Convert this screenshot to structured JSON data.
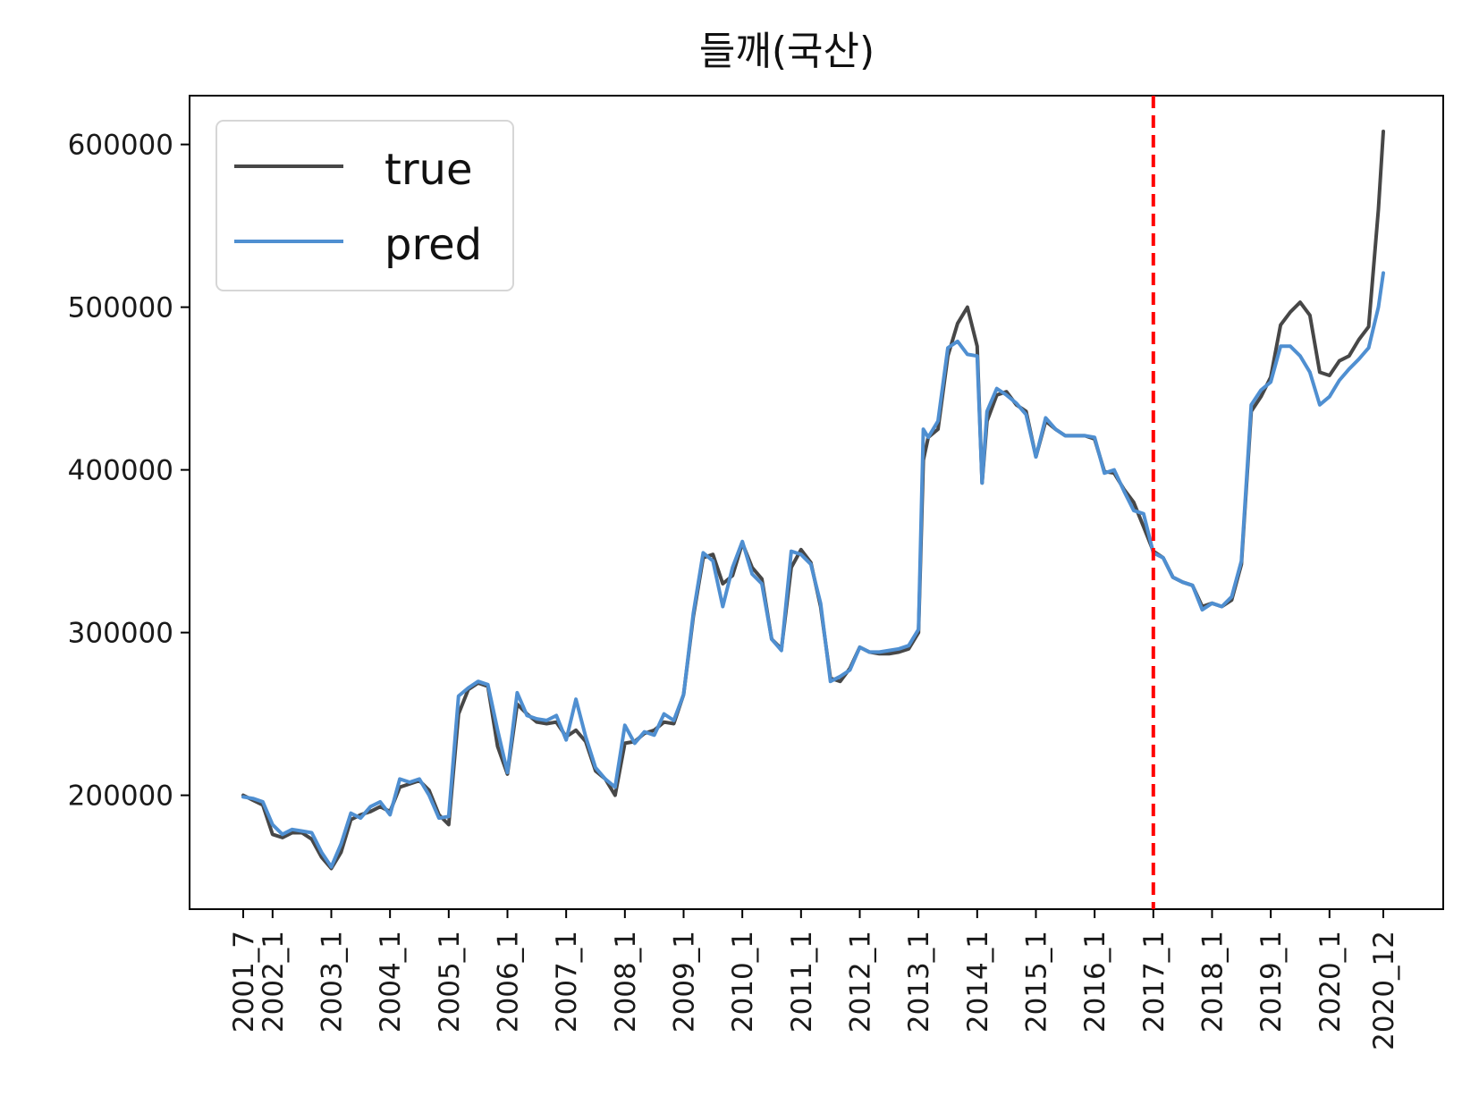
{
  "chart_data": {
    "type": "line",
    "title": "들깨(국산)",
    "xlabel": "",
    "ylabel": "",
    "x_ticks": [
      "2001_7",
      "2002_1",
      "2003_1",
      "2004_1",
      "2005_1",
      "2006_1",
      "2007_1",
      "2008_1",
      "2009_1",
      "2010_1",
      "2011_1",
      "2012_1",
      "2013_1",
      "2014_1",
      "2015_1",
      "2016_1",
      "2017_1",
      "2018_1",
      "2019_1",
      "2020_1",
      "2020_12"
    ],
    "y_ticks": [
      200000,
      300000,
      400000,
      500000,
      600000
    ],
    "ylim": [
      130000,
      630000
    ],
    "grid": false,
    "legend": {
      "position": "upper-left",
      "entries": [
        "true",
        "pred"
      ]
    },
    "split_marker": {
      "x": "2017_1",
      "color": "#ff0000",
      "style": "dashed"
    },
    "colors": {
      "true": "#474747",
      "pred": "#4f8fd1",
      "split": "#ff0000"
    },
    "series": [
      {
        "name": "true",
        "points": [
          [
            "2001_7",
            200000
          ],
          [
            "2001_9",
            197000
          ],
          [
            "2001_11",
            194000
          ],
          [
            "2002_1",
            176000
          ],
          [
            "2002_3",
            174000
          ],
          [
            "2002_5",
            177000
          ],
          [
            "2002_7",
            177000
          ],
          [
            "2002_9",
            173000
          ],
          [
            "2002_11",
            162000
          ],
          [
            "2003_1",
            155000
          ],
          [
            "2003_3",
            165000
          ],
          [
            "2003_5",
            185000
          ],
          [
            "2003_7",
            188000
          ],
          [
            "2003_9",
            190000
          ],
          [
            "2003_11",
            193000
          ],
          [
            "2004_1",
            190000
          ],
          [
            "2004_3",
            205000
          ],
          [
            "2004_5",
            207000
          ],
          [
            "2004_7",
            209000
          ],
          [
            "2004_9",
            203000
          ],
          [
            "2004_11",
            188000
          ],
          [
            "2005_1",
            182000
          ],
          [
            "2005_3",
            250000
          ],
          [
            "2005_5",
            265000
          ],
          [
            "2005_7",
            269000
          ],
          [
            "2005_9",
            267000
          ],
          [
            "2005_11",
            230000
          ],
          [
            "2006_1",
            213000
          ],
          [
            "2006_3",
            256000
          ],
          [
            "2006_5",
            250000
          ],
          [
            "2006_7",
            245000
          ],
          [
            "2006_9",
            244000
          ],
          [
            "2006_11",
            245000
          ],
          [
            "2007_1",
            236000
          ],
          [
            "2007_3",
            240000
          ],
          [
            "2007_5",
            233000
          ],
          [
            "2007_7",
            215000
          ],
          [
            "2007_9",
            210000
          ],
          [
            "2007_11",
            200000
          ],
          [
            "2008_1",
            232000
          ],
          [
            "2008_3",
            233000
          ],
          [
            "2008_5",
            238000
          ],
          [
            "2008_7",
            240000
          ],
          [
            "2008_9",
            245000
          ],
          [
            "2008_11",
            244000
          ],
          [
            "2009_1",
            262000
          ],
          [
            "2009_3",
            310000
          ],
          [
            "2009_5",
            346000
          ],
          [
            "2009_7",
            348000
          ],
          [
            "2009_9",
            330000
          ],
          [
            "2009_11",
            335000
          ],
          [
            "2010_1",
            355000
          ],
          [
            "2010_3",
            340000
          ],
          [
            "2010_5",
            333000
          ],
          [
            "2010_7",
            296000
          ],
          [
            "2010_9",
            290000
          ],
          [
            "2010_11",
            340000
          ],
          [
            "2011_1",
            351000
          ],
          [
            "2011_3",
            343000
          ],
          [
            "2011_5",
            316000
          ],
          [
            "2011_7",
            272000
          ],
          [
            "2011_9",
            270000
          ],
          [
            "2011_11",
            278000
          ],
          [
            "2012_1",
            291000
          ],
          [
            "2012_3",
            288000
          ],
          [
            "2012_5",
            287000
          ],
          [
            "2012_7",
            287000
          ],
          [
            "2012_9",
            288000
          ],
          [
            "2012_11",
            290000
          ],
          [
            "2013_1",
            300000
          ],
          [
            "2013_2",
            406000
          ],
          [
            "2013_3",
            420000
          ],
          [
            "2013_5",
            425000
          ],
          [
            "2013_7",
            470000
          ],
          [
            "2013_9",
            490000
          ],
          [
            "2013_11",
            500000
          ],
          [
            "2014_1",
            476000
          ],
          [
            "2014_2",
            392000
          ],
          [
            "2014_3",
            430000
          ],
          [
            "2014_5",
            446000
          ],
          [
            "2014_7",
            448000
          ],
          [
            "2014_9",
            440000
          ],
          [
            "2014_11",
            436000
          ],
          [
            "2015_1",
            408000
          ],
          [
            "2015_3",
            430000
          ],
          [
            "2015_5",
            425000
          ],
          [
            "2015_7",
            421000
          ],
          [
            "2015_9",
            421000
          ],
          [
            "2015_11",
            421000
          ],
          [
            "2016_1",
            419000
          ],
          [
            "2016_3",
            399000
          ],
          [
            "2016_5",
            398000
          ],
          [
            "2016_7",
            388000
          ],
          [
            "2016_9",
            380000
          ],
          [
            "2016_11",
            365000
          ],
          [
            "2017_1",
            350000
          ],
          [
            "2017_3",
            346000
          ],
          [
            "2017_5",
            334000
          ],
          [
            "2017_7",
            331000
          ],
          [
            "2017_9",
            329000
          ],
          [
            "2017_11",
            316000
          ],
          [
            "2018_1",
            318000
          ],
          [
            "2018_3",
            316000
          ],
          [
            "2018_5",
            320000
          ],
          [
            "2018_7",
            342000
          ],
          [
            "2018_9",
            436000
          ],
          [
            "2018_11",
            445000
          ],
          [
            "2019_1",
            457000
          ],
          [
            "2019_3",
            489000
          ],
          [
            "2019_5",
            497000
          ],
          [
            "2019_7",
            503000
          ],
          [
            "2019_9",
            495000
          ],
          [
            "2019_11",
            460000
          ],
          [
            "2020_1",
            458000
          ],
          [
            "2020_3",
            467000
          ],
          [
            "2020_5",
            470000
          ],
          [
            "2020_7",
            480000
          ],
          [
            "2020_9",
            488000
          ],
          [
            "2020_11",
            560000
          ],
          [
            "2020_12",
            608000
          ]
        ]
      },
      {
        "name": "pred",
        "points": [
          [
            "2001_7",
            199000
          ],
          [
            "2001_9",
            198000
          ],
          [
            "2001_11",
            196000
          ],
          [
            "2002_1",
            182000
          ],
          [
            "2002_3",
            176000
          ],
          [
            "2002_5",
            179000
          ],
          [
            "2002_7",
            178000
          ],
          [
            "2002_9",
            177000
          ],
          [
            "2002_11",
            165000
          ],
          [
            "2003_1",
            156000
          ],
          [
            "2003_3",
            170000
          ],
          [
            "2003_5",
            189000
          ],
          [
            "2003_7",
            186000
          ],
          [
            "2003_9",
            193000
          ],
          [
            "2003_11",
            196000
          ],
          [
            "2004_1",
            188000
          ],
          [
            "2004_3",
            210000
          ],
          [
            "2004_5",
            208000
          ],
          [
            "2004_7",
            210000
          ],
          [
            "2004_9",
            200000
          ],
          [
            "2004_11",
            186000
          ],
          [
            "2005_1",
            187000
          ],
          [
            "2005_3",
            261000
          ],
          [
            "2005_5",
            266000
          ],
          [
            "2005_7",
            270000
          ],
          [
            "2005_9",
            268000
          ],
          [
            "2005_11",
            240000
          ],
          [
            "2006_1",
            214000
          ],
          [
            "2006_3",
            263000
          ],
          [
            "2006_5",
            249000
          ],
          [
            "2006_7",
            247000
          ],
          [
            "2006_9",
            246000
          ],
          [
            "2006_11",
            249000
          ],
          [
            "2007_1",
            234000
          ],
          [
            "2007_3",
            259000
          ],
          [
            "2007_5",
            236000
          ],
          [
            "2007_7",
            217000
          ],
          [
            "2007_9",
            210000
          ],
          [
            "2007_11",
            205000
          ],
          [
            "2008_1",
            243000
          ],
          [
            "2008_3",
            232000
          ],
          [
            "2008_5",
            239000
          ],
          [
            "2008_7",
            237000
          ],
          [
            "2008_9",
            250000
          ],
          [
            "2008_11",
            246000
          ],
          [
            "2009_1",
            262000
          ],
          [
            "2009_3",
            312000
          ],
          [
            "2009_5",
            349000
          ],
          [
            "2009_7",
            344000
          ],
          [
            "2009_9",
            316000
          ],
          [
            "2009_11",
            340000
          ],
          [
            "2010_1",
            356000
          ],
          [
            "2010_3",
            336000
          ],
          [
            "2010_5",
            330000
          ],
          [
            "2010_7",
            296000
          ],
          [
            "2010_9",
            289000
          ],
          [
            "2010_11",
            350000
          ],
          [
            "2011_1",
            348000
          ],
          [
            "2011_3",
            342000
          ],
          [
            "2011_5",
            318000
          ],
          [
            "2011_7",
            270000
          ],
          [
            "2011_9",
            273000
          ],
          [
            "2011_11",
            277000
          ],
          [
            "2012_1",
            291000
          ],
          [
            "2012_3",
            288000
          ],
          [
            "2012_5",
            288000
          ],
          [
            "2012_7",
            289000
          ],
          [
            "2012_9",
            290000
          ],
          [
            "2012_11",
            292000
          ],
          [
            "2013_1",
            302000
          ],
          [
            "2013_2",
            425000
          ],
          [
            "2013_3",
            420000
          ],
          [
            "2013_5",
            430000
          ],
          [
            "2013_7",
            475000
          ],
          [
            "2013_9",
            479000
          ],
          [
            "2013_11",
            471000
          ],
          [
            "2014_1",
            470000
          ],
          [
            "2014_2",
            392000
          ],
          [
            "2014_3",
            436000
          ],
          [
            "2014_5",
            450000
          ],
          [
            "2014_7",
            446000
          ],
          [
            "2014_9",
            441000
          ],
          [
            "2014_11",
            434000
          ],
          [
            "2015_1",
            408000
          ],
          [
            "2015_3",
            432000
          ],
          [
            "2015_5",
            425000
          ],
          [
            "2015_7",
            421000
          ],
          [
            "2015_9",
            421000
          ],
          [
            "2015_11",
            421000
          ],
          [
            "2016_1",
            420000
          ],
          [
            "2016_3",
            398000
          ],
          [
            "2016_5",
            400000
          ],
          [
            "2016_7",
            387000
          ],
          [
            "2016_9",
            375000
          ],
          [
            "2016_11",
            373000
          ],
          [
            "2017_1",
            349000
          ],
          [
            "2017_3",
            346000
          ],
          [
            "2017_5",
            334000
          ],
          [
            "2017_7",
            331000
          ],
          [
            "2017_9",
            329000
          ],
          [
            "2017_11",
            314000
          ],
          [
            "2018_1",
            318000
          ],
          [
            "2018_3",
            316000
          ],
          [
            "2018_5",
            322000
          ],
          [
            "2018_7",
            344000
          ],
          [
            "2018_9",
            440000
          ],
          [
            "2018_11",
            449000
          ],
          [
            "2019_1",
            454000
          ],
          [
            "2019_3",
            476000
          ],
          [
            "2019_5",
            476000
          ],
          [
            "2019_7",
            470000
          ],
          [
            "2019_9",
            460000
          ],
          [
            "2019_11",
            440000
          ],
          [
            "2020_1",
            445000
          ],
          [
            "2020_3",
            455000
          ],
          [
            "2020_5",
            462000
          ],
          [
            "2020_7",
            468000
          ],
          [
            "2020_9",
            475000
          ],
          [
            "2020_11",
            500000
          ],
          [
            "2020_12",
            521000
          ]
        ]
      }
    ]
  }
}
